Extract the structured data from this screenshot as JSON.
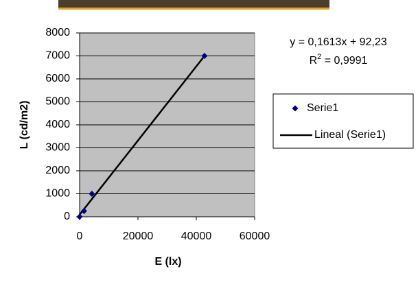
{
  "chart_data": {
    "type": "scatter",
    "x_label": "E (lx)",
    "y_label": "L (cd/m2)",
    "series": [
      {
        "name": "Serie1",
        "color": "#000080",
        "x": [
          0,
          1500,
          4200,
          42800
        ],
        "values": [
          0,
          250,
          1000,
          7000
        ]
      }
    ],
    "trendline": {
      "name": "Lineal (Serie1)",
      "color": "#000000",
      "slope": 0.1613,
      "intercept": 92.23,
      "equation": "y = 0,1613x + 92,23",
      "r2_label": [
        "R",
        "2",
        " = 0,9991"
      ]
    },
    "xlim": [
      0,
      60000
    ],
    "xticks": [
      0,
      20000,
      40000,
      60000
    ],
    "ylim": [
      0,
      8000
    ],
    "yticks": [
      0,
      1000,
      2000,
      3000,
      4000,
      5000,
      6000,
      7000,
      8000
    ],
    "grid": true,
    "legend": "right",
    "plot_background": "#c0c0c0"
  }
}
